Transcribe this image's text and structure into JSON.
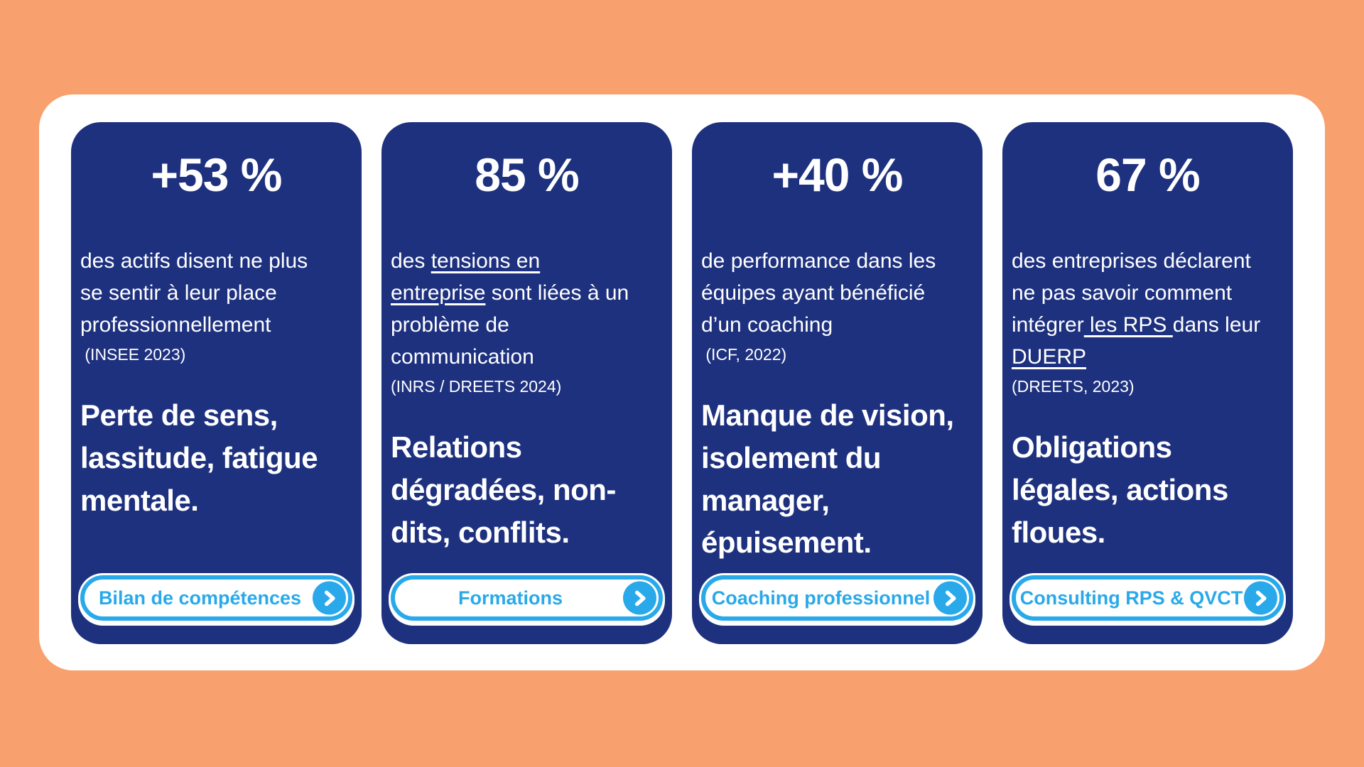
{
  "colors": {
    "page_bg": "#f8a06e",
    "panel_bg": "#ffffff",
    "card_bg": "#1e317f",
    "accent": "#29a9ea",
    "text": "#ffffff"
  },
  "cards": [
    {
      "stat": "+53 %",
      "description": [
        {
          "text": "des actifs disent ne plus\nse sentir à leur place\nprofessionnellement",
          "underline": false
        }
      ],
      "source": " (INSEE 2023)",
      "statement": "Perte de sens,\nlassitude, fatigue\nmentale.",
      "button": {
        "label": "Bilan de compétences",
        "icon": "chevron-right-icon"
      }
    },
    {
      "stat": "85 %",
      "description": [
        {
          "text": "des ",
          "underline": false
        },
        {
          "text": "tensions en\nentreprise",
          "underline": true
        },
        {
          "text": " sont liées à un\nproblème de\ncommunication",
          "underline": false
        }
      ],
      "source": "(INRS / DREETS 2024)",
      "statement": "Relations\ndégradées, non-\ndits, conflits.",
      "button": {
        "label": "Formations",
        "icon": "chevron-right-icon"
      }
    },
    {
      "stat": "+40 %",
      "description": [
        {
          "text": "de performance dans les\néquipes ayant bénéficié\nd’un coaching",
          "underline": false
        }
      ],
      "source": " (ICF, 2022)",
      "statement": "Manque de vision,\nisolement du\nmanager,\népuisement.",
      "button": {
        "label": "Coaching professionnel",
        "icon": "chevron-right-icon"
      }
    },
    {
      "stat": "67 %",
      "description": [
        {
          "text": "des entreprises déclarent\nne pas savoir comment\nintégrer",
          "underline": false
        },
        {
          "text": " les RPS ",
          "underline": true
        },
        {
          "text": "dans leur\n",
          "underline": false
        },
        {
          "text": "DUERP",
          "underline": true
        }
      ],
      "source": "(DREETS, 2023)",
      "statement": "Obligations\nlégales, actions\nfloues.",
      "button": {
        "label": "Consulting RPS & QVCT",
        "icon": "chevron-right-icon"
      }
    }
  ]
}
